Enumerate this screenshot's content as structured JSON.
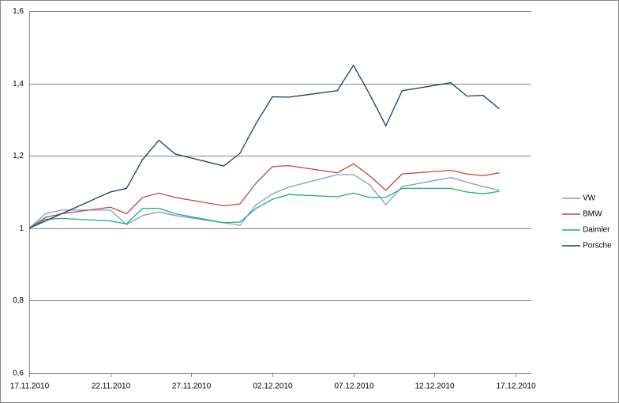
{
  "chart_data": {
    "type": "line",
    "x": [
      "17.11.2010",
      "18.11.2010",
      "19.11.2010",
      "22.11.2010",
      "23.11.2010",
      "24.11.2010",
      "25.11.2010",
      "26.11.2010",
      "29.11.2010",
      "30.11.2010",
      "01.12.2010",
      "02.12.2010",
      "03.12.2010",
      "06.12.2010",
      "07.12.2010",
      "08.12.2010",
      "09.12.2010",
      "10.12.2010",
      "13.12.2010",
      "14.12.2010",
      "15.12.2010",
      "16.12.2010"
    ],
    "series": [
      {
        "name": "VW",
        "color": "#7b9fd0",
        "values": [
          1.0,
          1.04,
          1.05,
          1.05,
          1.01,
          1.035,
          1.045,
          1.035,
          1.015,
          1.008,
          1.065,
          1.095,
          1.113,
          1.148,
          1.148,
          1.12,
          1.065,
          1.115,
          1.14,
          1.127,
          1.115,
          1.105
        ]
      },
      {
        "name": "BMW",
        "color": "#b94a48",
        "values": [
          1.0,
          1.03,
          1.04,
          1.058,
          1.04,
          1.085,
          1.097,
          1.085,
          1.062,
          1.067,
          1.125,
          1.17,
          1.173,
          1.153,
          1.178,
          1.145,
          1.105,
          1.15,
          1.16,
          1.15,
          1.145,
          1.153
        ]
      },
      {
        "name": "Daimler",
        "color": "#1fae6e",
        "values": [
          1.0,
          1.025,
          1.027,
          1.02,
          1.012,
          1.055,
          1.055,
          1.04,
          1.015,
          1.017,
          1.055,
          1.08,
          1.093,
          1.087,
          1.097,
          1.085,
          1.085,
          1.11,
          1.11,
          1.1,
          1.095,
          1.102
        ]
      },
      {
        "name": "Porsche",
        "color": "#1f3864",
        "values": [
          1.0,
          1.02,
          1.04,
          1.1,
          1.11,
          1.19,
          1.243,
          1.205,
          1.172,
          1.207,
          1.29,
          1.363,
          1.362,
          1.38,
          1.45,
          1.37,
          1.283,
          1.38,
          1.402,
          1.365,
          1.367,
          1.33
        ]
      }
    ],
    "ylim": [
      0.6,
      1.6
    ],
    "yticks": [
      {
        "value": 0.6,
        "label": "0,6"
      },
      {
        "value": 0.8,
        "label": "0,8"
      },
      1,
      {
        "value": 1.2,
        "label": "1,2"
      },
      {
        "value": 1.4,
        "label": "1,4"
      },
      {
        "value": 1.6,
        "label": "1,6"
      }
    ],
    "xticks": [
      "17.11.2010",
      "22.11.2010",
      "27.11.2010",
      "02.12.2010",
      "07.12.2010",
      "12.12.2010",
      "17.12.2010"
    ],
    "grid": true,
    "legend": "right"
  }
}
